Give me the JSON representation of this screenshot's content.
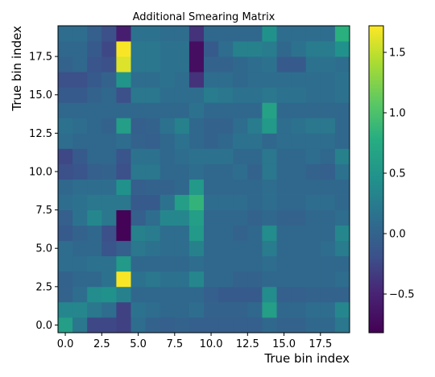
{
  "chart_data": {
    "type": "heatmap",
    "title": "Additional Smearing Matrix",
    "xlabel": "True bin index",
    "ylabel": "True bin index",
    "xlim": [
      -0.5,
      19.5
    ],
    "ylim": [
      -0.5,
      19.5
    ],
    "x_ticks": [
      0.0,
      2.5,
      5.0,
      7.5,
      10.0,
      12.5,
      15.0,
      17.5
    ],
    "x_tick_labels": [
      "0.0",
      "2.5",
      "5.0",
      "7.5",
      "10.0",
      "12.5",
      "15.0",
      "17.5"
    ],
    "y_ticks": [
      0.0,
      2.5,
      5.0,
      7.5,
      10.0,
      12.5,
      15.0,
      17.5
    ],
    "y_tick_labels": [
      "0.0",
      "2.5",
      "5.0",
      "7.5",
      "10.0",
      "12.5",
      "15.0",
      "17.5"
    ],
    "colormap": "viridis",
    "color_range": [
      -0.82,
      1.72
    ],
    "colorbar_ticks": [
      -0.5,
      0.0,
      0.5,
      1.0,
      1.5
    ],
    "colorbar_tick_labels": [
      "−0.5",
      "0.0",
      "0.5",
      "1.0",
      "1.5"
    ],
    "origin": "lower",
    "rows_note": "values[row][col]; row index = y (0 at bottom), col index = x",
    "values": [
      [
        0.6,
        0.2,
        -0.25,
        -0.25,
        -0.3,
        0.1,
        0.0,
        -0.05,
        0.0,
        -0.05,
        -0.05,
        -0.05,
        -0.05,
        -0.05,
        0.05,
        0.0,
        0.0,
        0.05,
        0.05,
        0.2
      ],
      [
        0.35,
        0.35,
        0.2,
        0.1,
        -0.3,
        0.15,
        0.1,
        0.05,
        0.05,
        0.1,
        0.0,
        0.0,
        0.0,
        0.05,
        0.6,
        0.05,
        0.05,
        0.1,
        0.1,
        0.35
      ],
      [
        0.0,
        0.1,
        0.4,
        0.45,
        0.3,
        0.05,
        0.05,
        0.05,
        0.05,
        0.05,
        -0.05,
        -0.1,
        -0.1,
        -0.1,
        0.4,
        -0.05,
        -0.05,
        0.0,
        0.0,
        0.0
      ],
      [
        0.0,
        0.05,
        0.05,
        0.15,
        1.7,
        0.15,
        0.2,
        0.15,
        0.15,
        0.35,
        0.05,
        0.05,
        0.0,
        0.0,
        0.05,
        0.05,
        0.05,
        0.05,
        0.05,
        0.1
      ],
      [
        0.1,
        0.1,
        0.15,
        0.15,
        0.55,
        0.05,
        0.05,
        0.05,
        0.05,
        0.1,
        0.05,
        0.05,
        0.05,
        0.05,
        0.1,
        0.05,
        0.05,
        0.05,
        0.05,
        0.05
      ],
      [
        0.1,
        0.05,
        0.05,
        -0.15,
        -0.05,
        0.2,
        0.15,
        0.1,
        0.1,
        0.3,
        0.05,
        0.05,
        0.05,
        0.05,
        0.25,
        0.05,
        0.05,
        0.05,
        0.1,
        0.25
      ],
      [
        -0.1,
        0.0,
        0.05,
        -0.2,
        -0.8,
        0.3,
        0.25,
        0.1,
        0.1,
        0.55,
        0.05,
        0.05,
        0.0,
        0.05,
        0.4,
        0.05,
        0.05,
        0.05,
        0.05,
        0.35
      ],
      [
        -0.05,
        0.15,
        0.35,
        0.2,
        -0.8,
        -0.05,
        0.1,
        0.35,
        0.35,
        0.6,
        0.05,
        0.05,
        0.05,
        0.0,
        0.05,
        0.0,
        0.0,
        0.05,
        0.05,
        0.1
      ],
      [
        0.1,
        0.15,
        0.2,
        0.2,
        0.2,
        -0.1,
        -0.1,
        0.15,
        0.6,
        0.85,
        0.1,
        0.1,
        0.1,
        0.05,
        0.1,
        0.05,
        0.05,
        0.1,
        0.1,
        0.05
      ],
      [
        0.05,
        0.1,
        0.1,
        0.1,
        0.45,
        -0.05,
        0.0,
        0.0,
        0.05,
        0.55,
        0.05,
        0.05,
        0.05,
        0.05,
        0.1,
        0.05,
        0.05,
        0.05,
        0.05,
        0.05
      ],
      [
        -0.2,
        -0.15,
        -0.05,
        0.0,
        -0.2,
        0.2,
        0.2,
        0.05,
        0.05,
        0.1,
        0.05,
        0.05,
        0.1,
        0.0,
        0.2,
        0.05,
        0.05,
        0.0,
        -0.05,
        0.15
      ],
      [
        -0.25,
        -0.1,
        0.05,
        0.05,
        -0.15,
        0.15,
        0.15,
        0.05,
        0.1,
        0.15,
        0.15,
        0.15,
        0.05,
        0.05,
        0.2,
        0.05,
        0.05,
        0.1,
        0.05,
        0.3
      ],
      [
        0.1,
        0.05,
        0.05,
        0.05,
        0.1,
        0.0,
        -0.05,
        0.05,
        0.15,
        0.05,
        0.0,
        0.05,
        0.15,
        0.15,
        0.05,
        0.1,
        0.1,
        0.1,
        0.1,
        0.05
      ],
      [
        0.15,
        0.1,
        0.05,
        0.0,
        0.6,
        -0.05,
        0.0,
        0.15,
        0.3,
        0.05,
        0.0,
        0.0,
        0.1,
        0.25,
        0.55,
        0.1,
        0.15,
        0.2,
        0.2,
        0.05
      ],
      [
        0.05,
        0.05,
        0.05,
        0.05,
        0.05,
        0.05,
        0.05,
        0.05,
        0.05,
        0.15,
        0.05,
        0.05,
        0.05,
        0.05,
        0.65,
        0.05,
        0.05,
        0.05,
        0.05,
        0.05
      ],
      [
        -0.1,
        -0.1,
        0.0,
        0.05,
        -0.2,
        0.2,
        0.2,
        0.1,
        0.1,
        0.1,
        0.25,
        0.2,
        0.15,
        0.15,
        0.2,
        0.15,
        0.15,
        0.1,
        0.1,
        0.15
      ],
      [
        -0.2,
        -0.2,
        -0.1,
        0.0,
        0.5,
        0.1,
        0.1,
        0.15,
        0.1,
        -0.4,
        0.1,
        0.1,
        0.05,
        0.1,
        0.1,
        0.1,
        0.1,
        0.1,
        0.1,
        0.15
      ],
      [
        0.0,
        0.05,
        -0.15,
        -0.2,
        1.6,
        0.2,
        0.2,
        0.15,
        0.15,
        -0.7,
        0.0,
        0.0,
        0.05,
        0.1,
        0.15,
        -0.1,
        -0.1,
        0.15,
        0.15,
        0.1
      ],
      [
        0.05,
        0.05,
        -0.1,
        -0.25,
        1.7,
        0.2,
        0.2,
        0.15,
        0.15,
        -0.7,
        -0.1,
        0.1,
        0.3,
        0.3,
        0.25,
        0.05,
        0.15,
        0.25,
        0.25,
        0.45
      ],
      [
        0.1,
        0.1,
        -0.05,
        -0.2,
        -0.55,
        0.15,
        0.15,
        0.1,
        0.1,
        -0.4,
        0.05,
        0.05,
        0.05,
        0.05,
        0.45,
        0.1,
        0.1,
        0.1,
        0.1,
        0.8
      ]
    ]
  }
}
